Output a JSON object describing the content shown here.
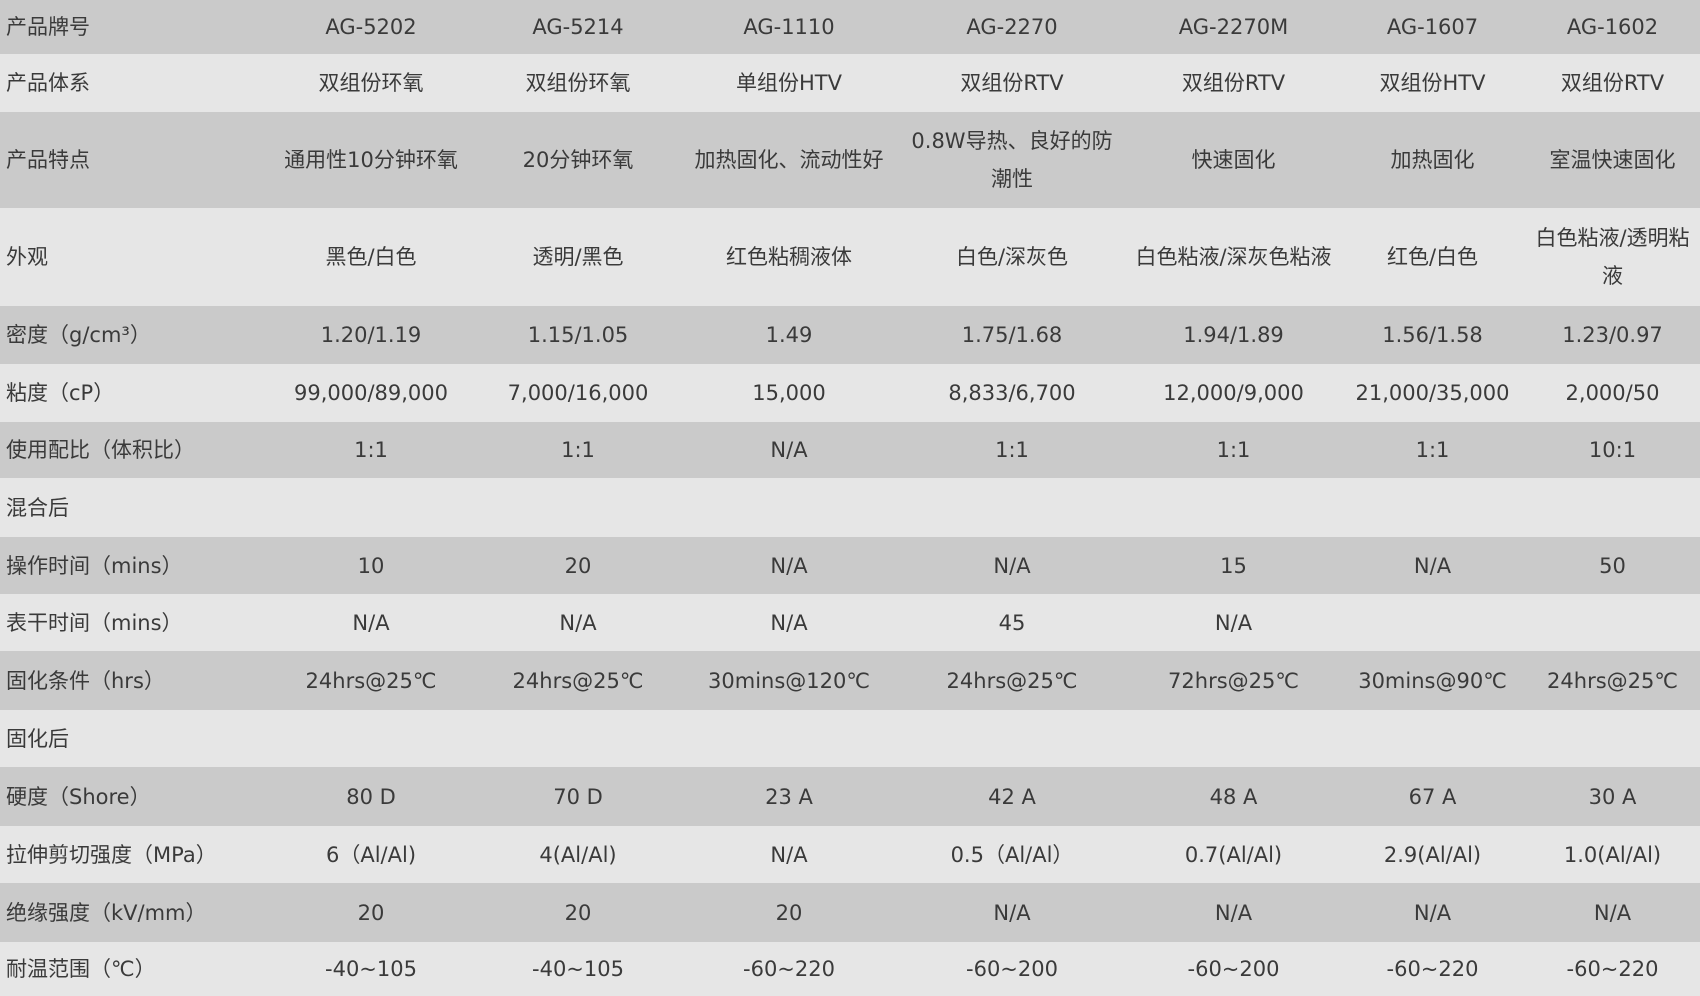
{
  "colors": {
    "row_dark": "#cacaca",
    "row_light": "#e6e6e6",
    "text": "#3a3a3a"
  },
  "table": {
    "rows": [
      {
        "label": "产品牌号",
        "cells": [
          "AG-5202",
          "AG-5214",
          "AG-1110",
          "AG-2270",
          "AG-2270M",
          "AG-1607",
          "AG-1602"
        ]
      },
      {
        "label": "产品体系",
        "cells": [
          "双组份环氧",
          "双组份环氧",
          "单组份HTV",
          "双组份RTV",
          "双组份RTV",
          "双组份HTV",
          "双组份RTV"
        ]
      },
      {
        "label": "产品特点",
        "cells": [
          "通用性10分钟环氧",
          "20分钟环氧",
          "加热固化、流动性好",
          "0.8W导热、良好的防潮性",
          "快速固化",
          "加热固化",
          "室温快速固化"
        ]
      },
      {
        "label": "外观",
        "cells": [
          "黑色/白色",
          "透明/黑色",
          "红色粘稠液体",
          "白色/深灰色",
          "白色粘液/深灰色粘液",
          "红色/白色",
          "白色粘液/透明粘液"
        ]
      },
      {
        "label": "密度（g/cm³）",
        "cells": [
          "1.20/1.19",
          "1.15/1.05",
          "1.49",
          "1.75/1.68",
          "1.94/1.89",
          "1.56/1.58",
          "1.23/0.97"
        ]
      },
      {
        "label": "粘度（cP）",
        "cells": [
          "99,000/89,000",
          "7,000/16,000",
          "15,000",
          "8,833/6,700",
          "12,000/9,000",
          "21,000/35,000",
          "2,000/50"
        ]
      },
      {
        "label": "使用配比（体积比）",
        "cells": [
          "1:1",
          "1:1",
          "N/A",
          "1:1",
          "1:1",
          "1:1",
          "10:1"
        ]
      },
      {
        "label": "混合后",
        "cells": [
          "",
          "",
          "",
          "",
          "",
          "",
          ""
        ]
      },
      {
        "label": "操作时间（mins）",
        "cells": [
          "10",
          "20",
          "N/A",
          "N/A",
          "15",
          "N/A",
          "50"
        ]
      },
      {
        "label": "表干时间（mins）",
        "cells": [
          "N/A",
          "N/A",
          "N/A",
          "45",
          "N/A",
          "",
          ""
        ]
      },
      {
        "label": "固化条件（hrs）",
        "cells": [
          "24hrs@25℃",
          "24hrs@25℃",
          "30mins@120℃",
          "24hrs@25℃",
          "72hrs@25℃",
          "30mins@90℃",
          "24hrs@25℃"
        ]
      },
      {
        "label": "固化后",
        "cells": [
          "",
          "",
          "",
          "",
          "",
          "",
          ""
        ]
      },
      {
        "label": "硬度（Shore）",
        "cells": [
          "80 D",
          "70 D",
          "23 A",
          "42 A",
          "48 A",
          "67 A",
          "30 A"
        ]
      },
      {
        "label": "拉伸剪切强度（MPa）",
        "cells": [
          "6（Al/Al)",
          "4(Al/Al)",
          "N/A",
          "0.5（Al/Al）",
          "0.7(Al/Al)",
          "2.9(Al/Al)",
          "1.0(Al/Al)"
        ]
      },
      {
        "label": "绝缘强度（kV/mm）",
        "cells": [
          "20",
          "20",
          "20",
          "N/A",
          "N/A",
          "N/A",
          "N/A"
        ]
      },
      {
        "label": "耐温范围（℃）",
        "cells": [
          "-40~105",
          "-40~105",
          "-60~220",
          "-60~200",
          "-60~200",
          "-60~220",
          "-60~220"
        ]
      }
    ]
  }
}
